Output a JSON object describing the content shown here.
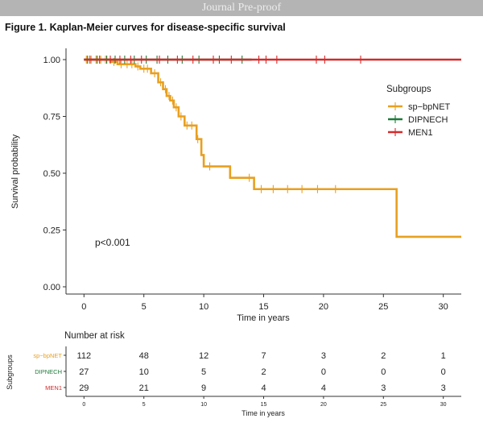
{
  "banner": "Journal Pre-proof",
  "figure_title": "Figure 1. Kaplan-Meier curves for disease-specific survival",
  "annotation": "p<0.001",
  "legend_title": "Subgroups",
  "risk_table": {
    "title": "Number at risk",
    "ylabel": "Subgroups",
    "xlabel": "Time in years",
    "times": [
      0,
      5,
      10,
      15,
      20,
      25,
      30
    ],
    "rows": [
      {
        "name": "sp−bpNET",
        "color": "#e8a020",
        "values": [
          112,
          48,
          12,
          7,
          3,
          2,
          1
        ]
      },
      {
        "name": "DIPNECH",
        "color": "#1e7a3a",
        "values": [
          27,
          10,
          5,
          2,
          0,
          0,
          0
        ]
      },
      {
        "name": "MEN1",
        "color": "#d42a2a",
        "values": [
          29,
          21,
          9,
          4,
          4,
          3,
          3
        ]
      }
    ]
  },
  "chart_data": {
    "type": "line",
    "title": "",
    "xlabel": "Time in years",
    "ylabel": "Survival probability",
    "xlim": [
      -1.5,
      31.5
    ],
    "ylim": [
      0,
      1.0
    ],
    "x_ticks": [
      0,
      5,
      10,
      15,
      20,
      25,
      30
    ],
    "y_ticks": [
      0.0,
      0.25,
      0.5,
      0.75,
      1.0
    ],
    "y_tick_labels": [
      "0.00",
      "0.25",
      "0.50",
      "0.75",
      "1.00"
    ],
    "grid": false,
    "legend": "right",
    "series": [
      {
        "name": "sp−bpNET",
        "color": "#e8a020",
        "step": [
          [
            0,
            1.0
          ],
          [
            2.2,
            0.99
          ],
          [
            2.8,
            0.98
          ],
          [
            4.3,
            0.97
          ],
          [
            4.7,
            0.96
          ],
          [
            5.6,
            0.94
          ],
          [
            6.2,
            0.9
          ],
          [
            6.6,
            0.87
          ],
          [
            6.9,
            0.84
          ],
          [
            7.2,
            0.82
          ],
          [
            7.5,
            0.79
          ],
          [
            7.9,
            0.75
          ],
          [
            8.4,
            0.71
          ],
          [
            9.4,
            0.65
          ],
          [
            9.8,
            0.58
          ],
          [
            10.0,
            0.53
          ],
          [
            12.2,
            0.48
          ],
          [
            14.2,
            0.43
          ],
          [
            26.1,
            0.22
          ],
          [
            31.5,
            0.22
          ]
        ],
        "censor": [
          0.2,
          0.6,
          1.0,
          1.4,
          1.8,
          2.5,
          3.1,
          3.6,
          4.0,
          4.5,
          5.0,
          5.3,
          5.9,
          6.4,
          6.8,
          7.1,
          7.4,
          7.7,
          8.1,
          8.6,
          9.0,
          9.5,
          10.5,
          13.8,
          14.8,
          15.8,
          17.0,
          18.2,
          19.5,
          21.0
        ]
      },
      {
        "name": "DIPNECH",
        "color": "#1e7a3a",
        "step": [
          [
            0,
            1.0
          ],
          [
            14.0,
            1.0
          ]
        ],
        "censor": [
          0.3,
          1.1,
          1.9,
          2.6,
          3.4,
          4.2,
          5.2,
          6.1,
          7.0,
          8.2,
          9.6,
          11.3,
          13.2
        ]
      },
      {
        "name": "MEN1",
        "color": "#d42a2a",
        "step": [
          [
            0,
            1.0
          ],
          [
            31.5,
            1.0
          ]
        ],
        "censor": [
          0.5,
          1.3,
          2.2,
          3.0,
          3.9,
          4.8,
          6.3,
          7.8,
          9.1,
          10.8,
          12.3,
          14.6,
          15.2,
          16.1,
          19.4,
          20.1,
          23.1
        ]
      }
    ]
  }
}
